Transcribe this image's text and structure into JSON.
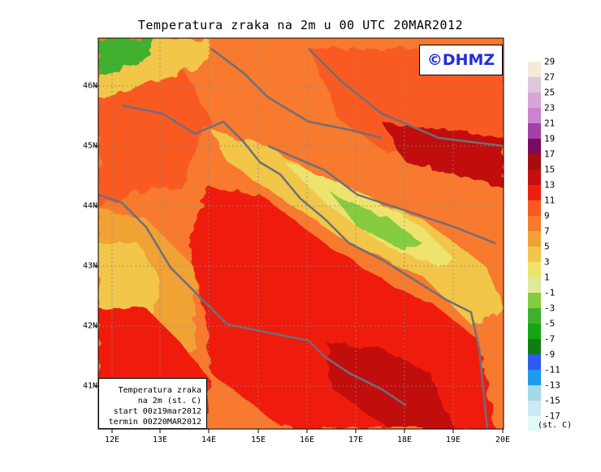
{
  "title": "Temperatura zraka na 2m u 00 UTC 20MAR2012",
  "logo_text": "©DHMZ",
  "info_box": [
    "Temperatura zraka",
    "na 2m (st. C)",
    "start 00z19mar2012",
    "termin 00Z20MAR2012"
  ],
  "x_axis": {
    "ticks": [
      "12E",
      "13E",
      "14E",
      "15E",
      "16E",
      "17E",
      "18E",
      "19E",
      "20E"
    ],
    "lon_range": [
      11.75,
      20.0
    ]
  },
  "y_axis": {
    "ticks": [
      "46N",
      "45N",
      "44N",
      "43N",
      "42N",
      "41N"
    ],
    "lat_range": [
      40.25,
      46.75
    ]
  },
  "legend": {
    "unit": "(st. C)",
    "labels": [
      "29",
      "27",
      "25",
      "23",
      "21",
      "19",
      "17",
      "15",
      "13",
      "11",
      "9",
      "7",
      "5",
      "3",
      "1",
      "-1",
      "-3",
      "-5",
      "-7",
      "-9",
      "-11",
      "-13",
      "-15",
      "-17"
    ],
    "colors": [
      "#f6e9d8",
      "#dcc7dd",
      "#d7a6d7",
      "#c883d1",
      "#a340a9",
      "#7b0b5e",
      "#a60e0e",
      "#c21010",
      "#ef1e0f",
      "#f95a20",
      "#f77a2e",
      "#f1a236",
      "#f1c64a",
      "#eee36c",
      "#dde99b",
      "#86cc3f",
      "#3fb02e",
      "#16a414",
      "#0f7e12",
      "#2e5af2",
      "#1d9bea",
      "#a6d8ea",
      "#cde9f2",
      "#e5f8f8"
    ]
  },
  "colors": {
    "land_warm": "#f77a2e",
    "sea": "#ef1e0f",
    "deep_sea": "#c21010",
    "mountain": "#f1c64a",
    "coast": "#6d6f7a"
  }
}
